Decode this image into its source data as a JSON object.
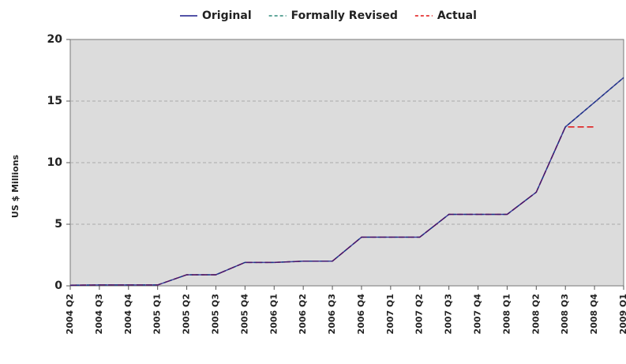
{
  "chart_data": {
    "type": "line",
    "y_label": "US $ Millions",
    "categories": [
      "2004 Q2",
      "2004 Q3",
      "2004 Q4",
      "2005 Q1",
      "2005 Q2",
      "2005 Q3",
      "2005 Q4",
      "2006 Q1",
      "2006 Q2",
      "2006 Q3",
      "2006 Q4",
      "2007 Q1",
      "2007 Q2",
      "2007 Q3",
      "2007 Q4",
      "2008 Q1",
      "2008 Q2",
      "2008 Q3",
      "2008 Q4",
      "2009 Q1"
    ],
    "series": [
      {
        "name": "Original",
        "color": "#1a1a8c",
        "dash": "solid",
        "values": [
          0.05,
          0.07,
          0.07,
          0.07,
          0.9,
          0.9,
          1.9,
          1.9,
          2.0,
          2.0,
          3.95,
          3.95,
          3.95,
          5.8,
          5.8,
          5.8,
          7.6,
          12.9,
          14.9,
          16.9
        ]
      },
      {
        "name": "Formally Revised",
        "color": "#2e8b7a",
        "dash": "dashed",
        "values": [
          0.05,
          0.07,
          0.07,
          0.07,
          0.9,
          0.9,
          1.9,
          1.9,
          2.0,
          2.0,
          3.95,
          3.95,
          3.95,
          5.8,
          5.8,
          5.8,
          7.6,
          12.9,
          14.9,
          16.9
        ]
      },
      {
        "name": "Actual",
        "color": "#e01010",
        "dash": "dashed",
        "values": [
          0.05,
          0.07,
          0.07,
          0.07,
          0.9,
          0.9,
          1.9,
          1.9,
          2.0,
          2.0,
          3.95,
          3.95,
          3.95,
          5.8,
          5.8,
          5.8,
          7.6,
          12.9,
          12.9,
          null
        ]
      }
    ],
    "ylim": [
      0,
      20
    ],
    "yticks": [
      0,
      5,
      10,
      15,
      20
    ],
    "grid": true,
    "legend": "top"
  }
}
